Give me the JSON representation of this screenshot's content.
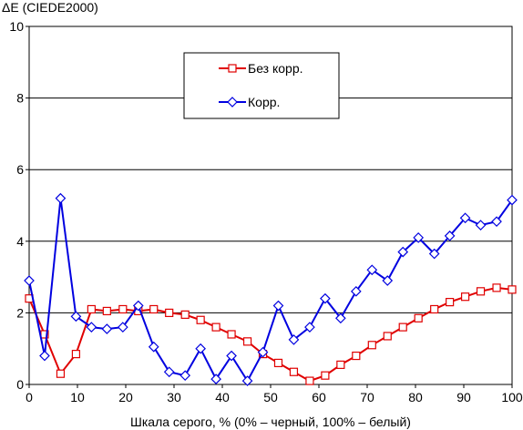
{
  "chart_data": {
    "type": "line",
    "ylabel": "ΔE (CIEDE2000)",
    "xlabel": "Шкала серого, % (0% – черный, 100% – белый)",
    "xlim": [
      0,
      100
    ],
    "ylim": [
      0,
      10
    ],
    "x_ticks": [
      0,
      10,
      20,
      30,
      40,
      50,
      60,
      70,
      80,
      90,
      100
    ],
    "y_ticks": [
      0,
      2,
      4,
      6,
      8,
      10
    ],
    "grid": "horizontal",
    "legend_position": "top-center",
    "x": [
      0,
      3.2,
      6.5,
      9.7,
      12.9,
      16.1,
      19.4,
      22.6,
      25.8,
      29.0,
      32.3,
      35.5,
      38.7,
      41.9,
      45.2,
      48.4,
      51.6,
      54.8,
      58.1,
      61.3,
      64.5,
      67.7,
      71.0,
      74.2,
      77.4,
      80.6,
      83.9,
      87.1,
      90.3,
      93.5,
      96.8,
      100
    ],
    "series": [
      {
        "name": "Без корр.",
        "color": "#e00000",
        "marker": "square",
        "values": [
          2.4,
          1.4,
          0.3,
          0.85,
          2.1,
          2.05,
          2.1,
          2.05,
          2.1,
          2.0,
          1.95,
          1.8,
          1.6,
          1.4,
          1.2,
          0.85,
          0.6,
          0.35,
          0.1,
          0.25,
          0.55,
          0.8,
          1.1,
          1.35,
          1.6,
          1.85,
          2.1,
          2.3,
          2.45,
          2.6,
          2.7,
          2.65
        ]
      },
      {
        "name": "Корр.",
        "color": "#0000e0",
        "marker": "diamond",
        "values": [
          2.9,
          0.8,
          5.2,
          1.9,
          1.6,
          1.55,
          1.6,
          2.2,
          1.05,
          0.35,
          0.25,
          1.0,
          0.15,
          0.8,
          0.1,
          0.9,
          2.2,
          1.25,
          1.6,
          2.4,
          1.85,
          2.6,
          3.2,
          2.9,
          3.7,
          4.1,
          3.65,
          4.15,
          4.65,
          4.45,
          4.55,
          5.15
        ]
      }
    ]
  }
}
